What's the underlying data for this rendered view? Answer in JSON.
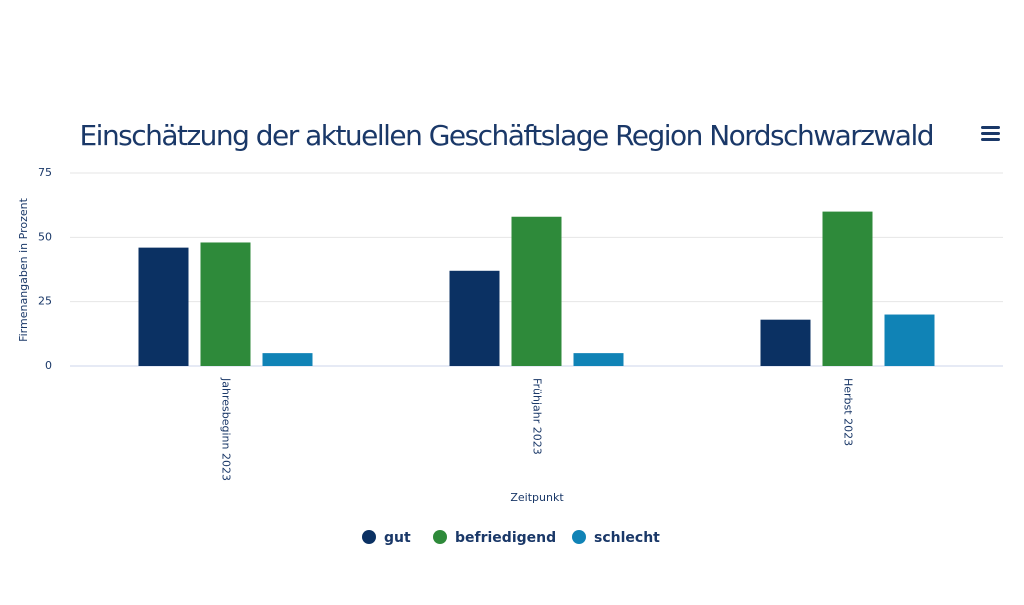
{
  "chart_data": {
    "type": "bar",
    "title": "Einschätzung der aktuellen Geschäftslage Region Nordschwarzwald",
    "y_axis_label": "Firmenangaben in Prozent",
    "x_axis_label": "Zeitpunkt",
    "categories": [
      "Jahresbeginn 2023",
      "Frühjahr 2023",
      "Herbst 2023"
    ],
    "series": [
      {
        "name": "gut",
        "color": "#0b3163",
        "values": [
          46,
          37,
          18
        ]
      },
      {
        "name": "befriedigend",
        "color": "#2e8a3a",
        "values": [
          48,
          58,
          60
        ]
      },
      {
        "name": "schlecht",
        "color": "#1083b6",
        "values": [
          5,
          5,
          20
        ]
      }
    ],
    "ylim": [
      0,
      75
    ],
    "yticks": [
      0,
      25,
      50,
      75
    ],
    "grid": true
  }
}
